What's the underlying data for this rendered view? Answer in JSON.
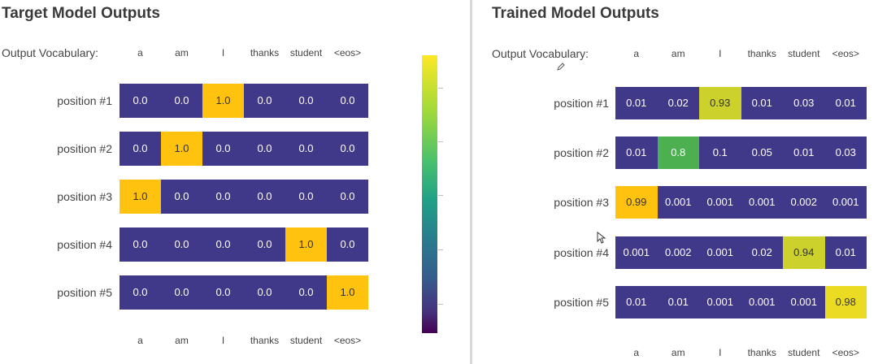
{
  "colors": {
    "low": "#403989",
    "mid": "#4caf50",
    "high": "#ffc20e",
    "yellow_green": "#cdd12b",
    "bright_yellow": "#ebdc23"
  },
  "left": {
    "title": "Target Model Outputs",
    "vocab_label": "Output Vocabulary:",
    "vocab": [
      "a",
      "am",
      "I",
      "thanks",
      "student",
      "<eos>"
    ],
    "bottom_vocab": [
      "a",
      "am",
      "I",
      "thanks",
      "student",
      "<eos>"
    ]
  },
  "right": {
    "title": "Trained Model Outputs",
    "vocab_label": "Output Vocabulary:",
    "vocab": [
      "a",
      "am",
      "I",
      "thanks",
      "student",
      "<eos>"
    ],
    "bottom_vocab": [
      "a",
      "am",
      "I",
      "thanks",
      "student",
      "<eos>"
    ]
  },
  "icons": {
    "cursor": "cursor-arrow-icon",
    "pencil": "pencil-icon"
  },
  "chart_data": [
    {
      "type": "heatmap",
      "title": "Target Model Outputs",
      "columns": [
        "a",
        "am",
        "I",
        "thanks",
        "student",
        "<eos>"
      ],
      "rows": [
        {
          "label": "position #1",
          "values": [
            "0.0",
            "0.0",
            "1.0",
            "0.0",
            "0.0",
            "0.0"
          ],
          "colors": [
            "low",
            "low",
            "high",
            "low",
            "low",
            "low"
          ]
        },
        {
          "label": "position #2",
          "values": [
            "0.0",
            "1.0",
            "0.0",
            "0.0",
            "0.0",
            "0.0"
          ],
          "colors": [
            "low",
            "high",
            "low",
            "low",
            "low",
            "low"
          ]
        },
        {
          "label": "position #3",
          "values": [
            "1.0",
            "0.0",
            "0.0",
            "0.0",
            "0.0",
            "0.0"
          ],
          "colors": [
            "high",
            "low",
            "low",
            "low",
            "low",
            "low"
          ]
        },
        {
          "label": "position #4",
          "values": [
            "0.0",
            "0.0",
            "0.0",
            "0.0",
            "1.0",
            "0.0"
          ],
          "colors": [
            "low",
            "low",
            "low",
            "low",
            "high",
            "low"
          ]
        },
        {
          "label": "position #5",
          "values": [
            "0.0",
            "0.0",
            "0.0",
            "0.0",
            "0.0",
            "1.0"
          ],
          "colors": [
            "low",
            "low",
            "low",
            "low",
            "low",
            "high"
          ]
        }
      ],
      "colorbar": {
        "range": [
          0,
          1
        ],
        "orientation": "vertical"
      }
    },
    {
      "type": "heatmap",
      "title": "Trained Model Outputs",
      "columns": [
        "a",
        "am",
        "I",
        "thanks",
        "student",
        "<eos>"
      ],
      "rows": [
        {
          "label": "position #1",
          "values": [
            "0.01",
            "0.02",
            "0.93",
            "0.01",
            "0.03",
            "0.01"
          ],
          "colors": [
            "low",
            "low",
            "yellow_green",
            "low",
            "low",
            "low"
          ]
        },
        {
          "label": "position #2",
          "values": [
            "0.01",
            "0.8",
            "0.1",
            "0.05",
            "0.01",
            "0.03"
          ],
          "colors": [
            "low",
            "mid",
            "low",
            "low",
            "low",
            "low"
          ]
        },
        {
          "label": "position #3",
          "values": [
            "0.99",
            "0.001",
            "0.001",
            "0.001",
            "0.002",
            "0.001"
          ],
          "colors": [
            "high",
            "low",
            "low",
            "low",
            "low",
            "low"
          ]
        },
        {
          "label": "position #4",
          "values": [
            "0.001",
            "0.002",
            "0.001",
            "0.02",
            "0.94",
            "0.01"
          ],
          "colors": [
            "low",
            "low",
            "low",
            "low",
            "yellow_green",
            "low"
          ]
        },
        {
          "label": "position #5",
          "values": [
            "0.01",
            "0.01",
            "0.001",
            "0.001",
            "0.001",
            "0.98"
          ],
          "colors": [
            "low",
            "low",
            "low",
            "low",
            "low",
            "bright_yellow"
          ]
        }
      ]
    }
  ]
}
